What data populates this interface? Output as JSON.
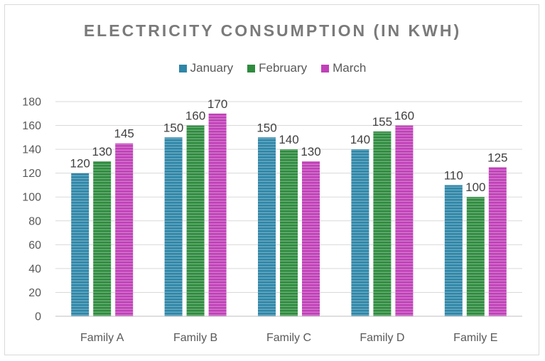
{
  "chart_data": {
    "type": "bar",
    "title": "ELECTRICITY CONSUMPTION (IN KWH)",
    "categories": [
      "Family A",
      "Family B",
      "Family C",
      "Family D",
      "Family E"
    ],
    "series": [
      {
        "name": "January",
        "values": [
          120,
          150,
          150,
          140,
          110
        ],
        "color": "#2e86a8"
      },
      {
        "name": "February",
        "values": [
          130,
          160,
          140,
          155,
          100
        ],
        "color": "#2e8b3e"
      },
      {
        "name": "March",
        "values": [
          145,
          170,
          130,
          160,
          125
        ],
        "color": "#c040b8"
      }
    ],
    "ylim": [
      0,
      180
    ],
    "yticks": [
      0,
      20,
      40,
      60,
      80,
      100,
      120,
      140,
      160,
      180
    ],
    "grid": true,
    "legend_position": "top"
  }
}
